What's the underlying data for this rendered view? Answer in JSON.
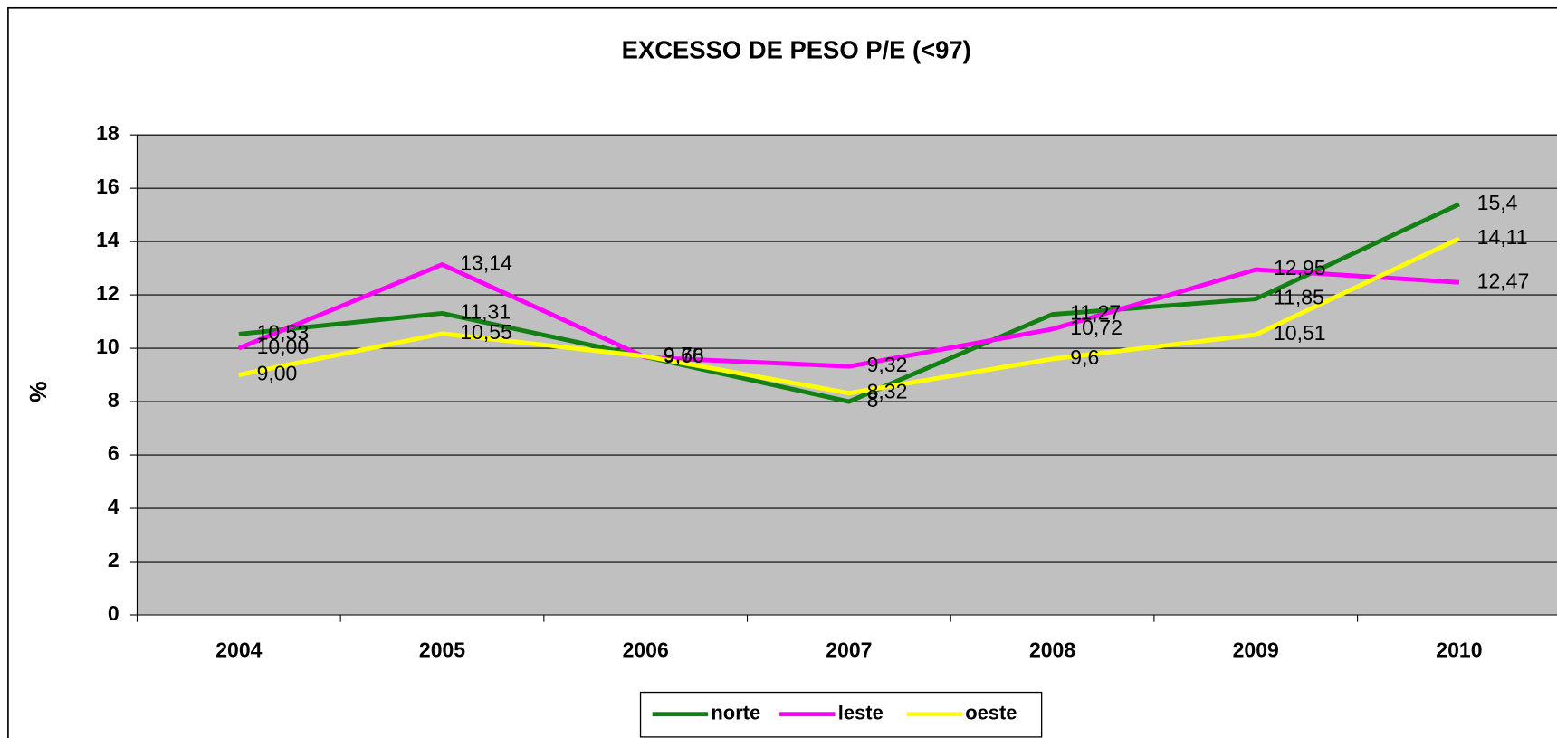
{
  "chart_data": {
    "type": "line",
    "title": "EXCESSO DE PESO P/E (<97)",
    "y_label": "%",
    "categories": [
      "2004",
      "2005",
      "2006",
      "2007",
      "2008",
      "2009",
      "2010"
    ],
    "series": [
      {
        "name": "norte",
        "color": "#138013",
        "values": [
          10.53,
          11.31,
          9.68,
          8,
          11.27,
          11.85,
          15.4
        ],
        "value_labels": [
          "10,53",
          "11,31",
          "9,68",
          "8",
          "11,27",
          "11,85",
          "15,4"
        ]
      },
      {
        "name": "leste",
        "color": "#ff00ff",
        "values": [
          10.0,
          13.14,
          9.66,
          9.32,
          10.72,
          12.95,
          12.47
        ],
        "value_labels": [
          "10,00",
          "13,14",
          "9,66",
          "9,32",
          "10,72",
          "12,95",
          "12,47"
        ]
      },
      {
        "name": "oeste",
        "color": "#ffff00",
        "values": [
          9.0,
          10.55,
          9.7,
          8.32,
          9.6,
          10.51,
          14.11
        ],
        "value_labels": [
          "9,00",
          "10,55",
          "9,7",
          "8,32",
          "9,6",
          "10,51",
          "14,11"
        ]
      }
    ],
    "ylim": [
      0,
      18
    ],
    "yticks": [
      0,
      2,
      4,
      6,
      8,
      10,
      12,
      14,
      16,
      18
    ],
    "grid": true,
    "legend": "bottom",
    "plot_background": "#c0c0c0"
  }
}
